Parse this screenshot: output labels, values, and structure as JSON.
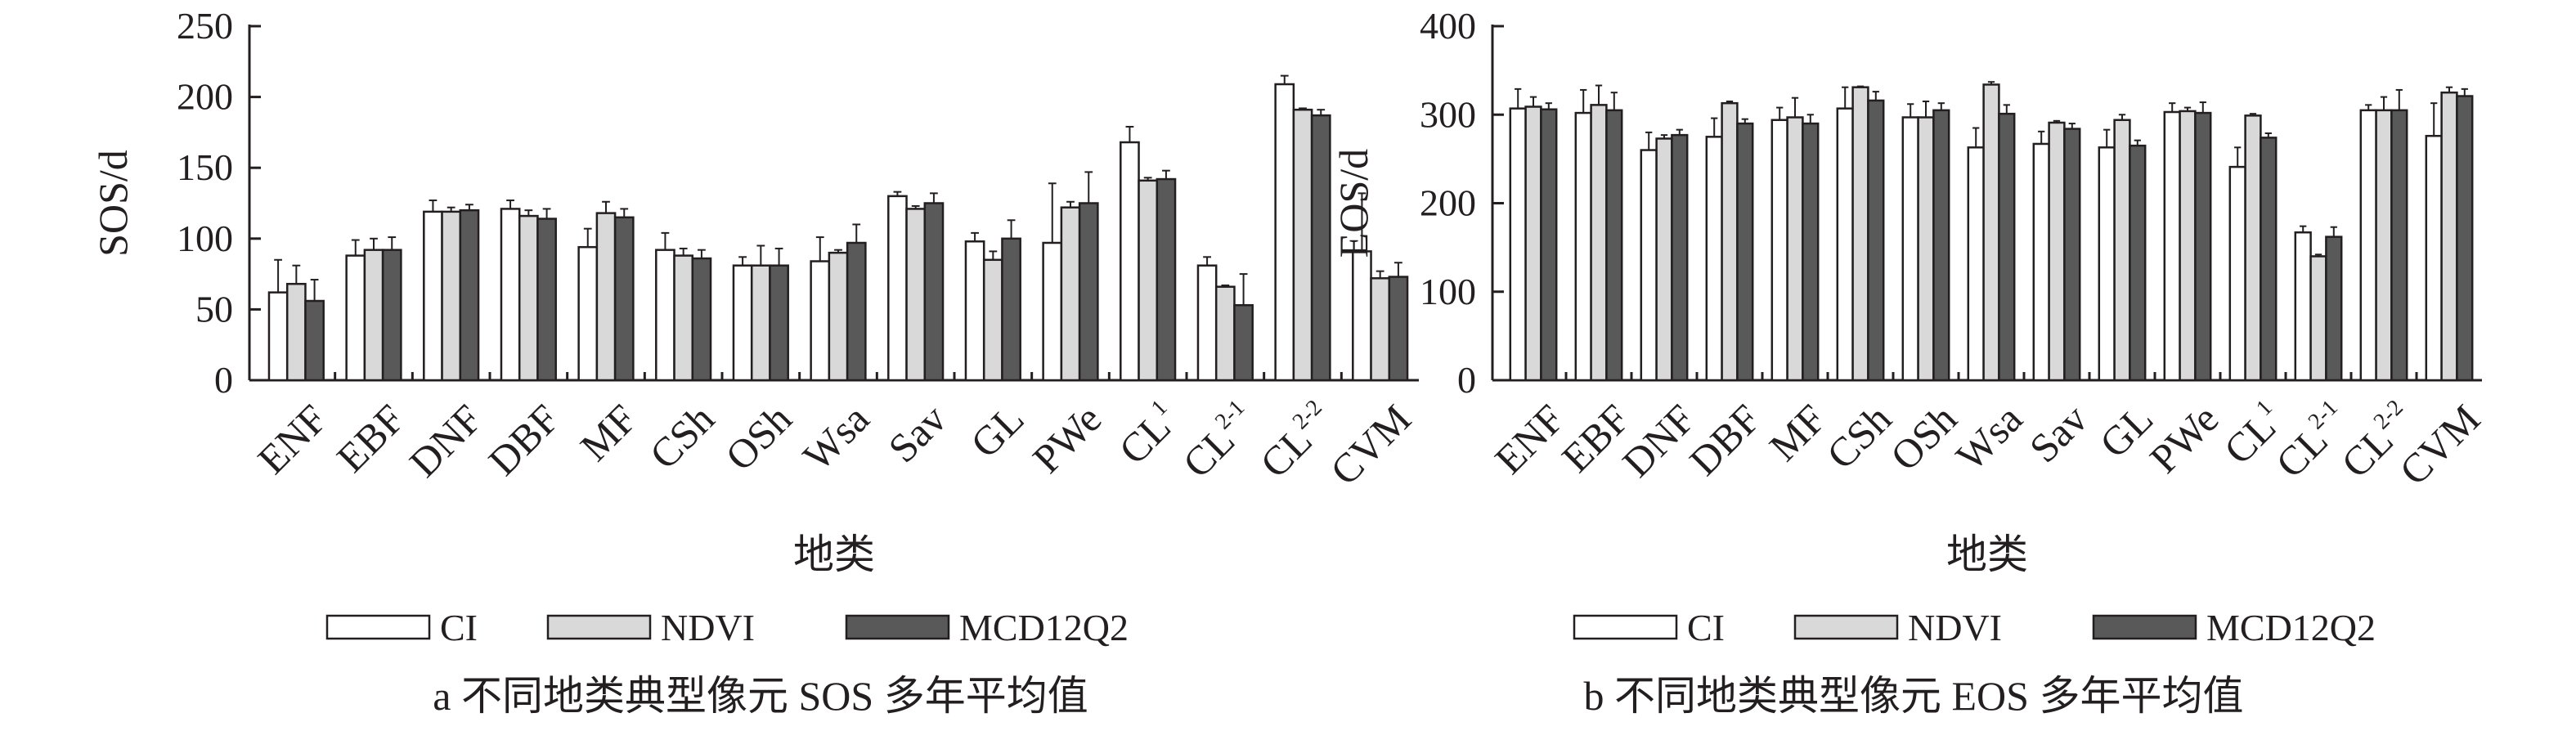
{
  "colors": {
    "CI": "#ffffff",
    "NDVI": "#d9d9d9",
    "MCD12Q2": "#595959",
    "ink": "#231f20"
  },
  "legend": [
    {
      "key": "CI",
      "label": "CI"
    },
    {
      "key": "NDVI",
      "label": "NDVI"
    },
    {
      "key": "MCD12Q2",
      "label": "MCD12Q2"
    }
  ],
  "chart_data": [
    {
      "type": "bar",
      "caption": "a 不同地类典型像元 SOS 多年平均值",
      "xlabel": "地类",
      "ylabel": "SOS/d",
      "ylim": [
        0,
        250
      ],
      "yticks": [
        0,
        50,
        100,
        150,
        200,
        250
      ],
      "grid": false,
      "legend_position": "bottom",
      "categories": [
        {
          "base": "ENF",
          "sup": ""
        },
        {
          "base": "EBF",
          "sup": ""
        },
        {
          "base": "DNF",
          "sup": ""
        },
        {
          "base": "DBF",
          "sup": ""
        },
        {
          "base": "MF",
          "sup": ""
        },
        {
          "base": "CSh",
          "sup": ""
        },
        {
          "base": "OSh",
          "sup": ""
        },
        {
          "base": "Wsa",
          "sup": ""
        },
        {
          "base": "Sav",
          "sup": ""
        },
        {
          "base": "GL",
          "sup": ""
        },
        {
          "base": "PWe",
          "sup": ""
        },
        {
          "base": "CL",
          "sup": "1"
        },
        {
          "base": "CL",
          "sup": "2-1"
        },
        {
          "base": "CL",
          "sup": "2-2"
        },
        {
          "base": "CVM",
          "sup": ""
        }
      ],
      "series": [
        {
          "name": "CI",
          "values": [
            62,
            88,
            119,
            121,
            94,
            92,
            81,
            84,
            130,
            98,
            97,
            168,
            81,
            209,
            91
          ],
          "errors": [
            23,
            11,
            8,
            6,
            13,
            12,
            6,
            17,
            3,
            6,
            42,
            11,
            6,
            6,
            41
          ]
        },
        {
          "name": "NDVI",
          "values": [
            68,
            92,
            119,
            116,
            118,
            88,
            81,
            90,
            121,
            85,
            122,
            141,
            66,
            191,
            72
          ],
          "errors": [
            13,
            8,
            3,
            4,
            8,
            5,
            14,
            2,
            2,
            6,
            4,
            2,
            1,
            1,
            5
          ]
        },
        {
          "name": "MCD12Q2",
          "values": [
            56,
            92,
            120,
            114,
            115,
            86,
            81,
            97,
            125,
            100,
            125,
            142,
            53,
            187,
            73
          ],
          "errors": [
            15,
            9,
            4,
            7,
            6,
            6,
            12,
            13,
            7,
            13,
            22,
            6,
            22,
            4,
            10
          ]
        }
      ]
    },
    {
      "type": "bar",
      "caption": "b 不同地类典型像元 EOS 多年平均值",
      "xlabel": "地类",
      "ylabel": "EOS/d",
      "ylim": [
        0,
        400
      ],
      "yticks": [
        0,
        100,
        200,
        300,
        400
      ],
      "grid": false,
      "legend_position": "bottom",
      "categories": [
        {
          "base": "ENF",
          "sup": ""
        },
        {
          "base": "EBF",
          "sup": ""
        },
        {
          "base": "DNF",
          "sup": ""
        },
        {
          "base": "DBF",
          "sup": ""
        },
        {
          "base": "MF",
          "sup": ""
        },
        {
          "base": "CSh",
          "sup": ""
        },
        {
          "base": "OSh",
          "sup": ""
        },
        {
          "base": "Wsa",
          "sup": ""
        },
        {
          "base": "Sav",
          "sup": ""
        },
        {
          "base": "GL",
          "sup": ""
        },
        {
          "base": "PWe",
          "sup": ""
        },
        {
          "base": "CL",
          "sup": "1"
        },
        {
          "base": "CL",
          "sup": "2-1"
        },
        {
          "base": "CL",
          "sup": "2-2"
        },
        {
          "base": "CVM",
          "sup": ""
        }
      ],
      "series": [
        {
          "name": "CI",
          "values": [
            307,
            302,
            260,
            275,
            294,
            307,
            297,
            263,
            267,
            263,
            303,
            241,
            167,
            305,
            276
          ],
          "errors": [
            22,
            26,
            20,
            21,
            14,
            24,
            15,
            22,
            14,
            20,
            10,
            22,
            7,
            6,
            37
          ]
        },
        {
          "name": "NDVI",
          "values": [
            309,
            311,
            273,
            313,
            297,
            331,
            297,
            334,
            291,
            294,
            304,
            299,
            140,
            305,
            325
          ],
          "errors": [
            11,
            22,
            4,
            2,
            22,
            1,
            18,
            3,
            2,
            6,
            4,
            2,
            2,
            15,
            6
          ]
        },
        {
          "name": "MCD12Q2",
          "values": [
            306,
            305,
            277,
            290,
            290,
            316,
            305,
            301,
            284,
            265,
            302,
            274,
            162,
            305,
            321
          ],
          "errors": [
            7,
            20,
            6,
            5,
            10,
            10,
            8,
            10,
            6,
            6,
            12,
            5,
            11,
            23,
            8
          ]
        }
      ]
    }
  ]
}
